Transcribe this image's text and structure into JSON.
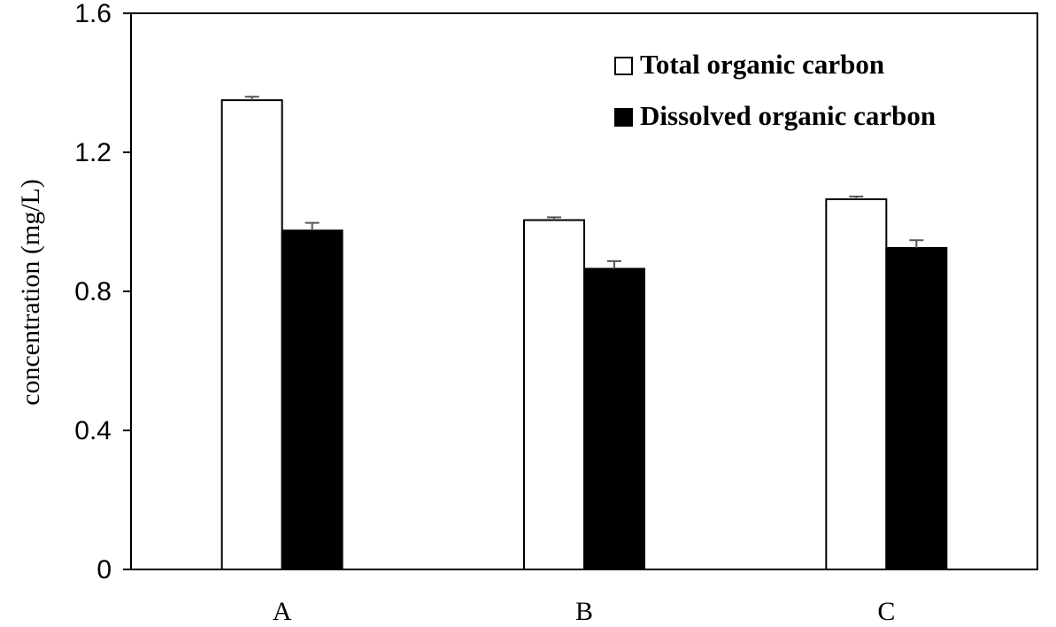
{
  "chart_data": {
    "type": "bar",
    "title": "",
    "xlabel": "",
    "ylabel": "concentration (mg/L)",
    "ylim": [
      0,
      1.6
    ],
    "yticks": [
      "0",
      "0.4",
      "0.8",
      "1.2",
      "1.6"
    ],
    "ytick_values": [
      0,
      0.4,
      0.8,
      1.2,
      1.6
    ],
    "categories": [
      "A",
      "B",
      "C"
    ],
    "series": [
      {
        "name": "Total organic carbon",
        "values": [
          1.35,
          1.005,
          1.065
        ],
        "errors": [
          0.01,
          0.008,
          0.008
        ],
        "fill": "#ffffff"
      },
      {
        "name": "Dissolved organic carbon",
        "values": [
          0.975,
          0.865,
          0.925
        ],
        "errors": [
          0.022,
          0.022,
          0.022
        ],
        "fill": "#000000"
      }
    ],
    "grid": false,
    "legend_position": "top-right"
  }
}
